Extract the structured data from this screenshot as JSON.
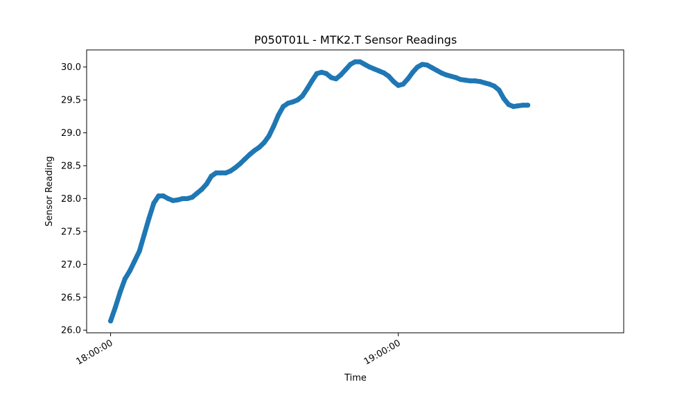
{
  "chart_data": {
    "type": "line",
    "title": "P050T01L - MTK2.T Sensor Readings",
    "xlabel": "Time",
    "ylabel": "Sensor Reading",
    "x_ticks": [
      "18:00:00",
      "19:00:00"
    ],
    "x_range_minutes": [
      -5,
      107
    ],
    "y_ticks": [
      "26.0",
      "26.5",
      "27.0",
      "27.5",
      "28.0",
      "28.5",
      "29.0",
      "29.5",
      "30.0"
    ],
    "ylim": [
      25.96,
      30.26
    ],
    "grid": false,
    "legend": "none",
    "color": "#1f77b4",
    "series": [
      {
        "name": "",
        "points": [
          [
            0,
            26.14
          ],
          [
            1,
            26.35
          ],
          [
            2,
            26.58
          ],
          [
            3,
            26.78
          ],
          [
            4,
            26.9
          ],
          [
            5,
            27.05
          ],
          [
            6,
            27.2
          ],
          [
            7,
            27.45
          ],
          [
            8,
            27.7
          ],
          [
            9,
            27.93
          ],
          [
            10,
            28.04
          ],
          [
            11,
            28.04
          ],
          [
            12,
            28.0
          ],
          [
            13,
            27.97
          ],
          [
            14,
            27.98
          ],
          [
            15,
            28.0
          ],
          [
            16,
            28.0
          ],
          [
            17,
            28.02
          ],
          [
            18,
            28.08
          ],
          [
            19,
            28.14
          ],
          [
            20,
            28.22
          ],
          [
            21,
            28.34
          ],
          [
            22,
            28.39
          ],
          [
            23,
            28.39
          ],
          [
            24,
            28.39
          ],
          [
            25,
            28.42
          ],
          [
            26,
            28.47
          ],
          [
            27,
            28.53
          ],
          [
            28,
            28.6
          ],
          [
            29,
            28.67
          ],
          [
            30,
            28.73
          ],
          [
            31,
            28.78
          ],
          [
            32,
            28.85
          ],
          [
            33,
            28.95
          ],
          [
            34,
            29.1
          ],
          [
            35,
            29.27
          ],
          [
            36,
            29.4
          ],
          [
            37,
            29.45
          ],
          [
            38,
            29.47
          ],
          [
            39,
            29.5
          ],
          [
            40,
            29.56
          ],
          [
            41,
            29.67
          ],
          [
            42,
            29.79
          ],
          [
            43,
            29.9
          ],
          [
            44,
            29.92
          ],
          [
            45,
            29.9
          ],
          [
            46,
            29.84
          ],
          [
            47,
            29.82
          ],
          [
            48,
            29.88
          ],
          [
            49,
            29.96
          ],
          [
            50,
            30.04
          ],
          [
            51,
            30.08
          ],
          [
            52,
            30.08
          ],
          [
            53,
            30.04
          ],
          [
            54,
            30.0
          ],
          [
            55,
            29.97
          ],
          [
            56,
            29.94
          ],
          [
            57,
            29.91
          ],
          [
            58,
            29.86
          ],
          [
            59,
            29.78
          ],
          [
            60,
            29.72
          ],
          [
            61,
            29.74
          ],
          [
            62,
            29.82
          ],
          [
            63,
            29.92
          ],
          [
            64,
            30.0
          ],
          [
            65,
            30.04
          ],
          [
            66,
            30.03
          ],
          [
            67,
            29.99
          ],
          [
            68,
            29.95
          ],
          [
            69,
            29.91
          ],
          [
            70,
            29.88
          ],
          [
            71,
            29.86
          ],
          [
            72,
            29.84
          ],
          [
            73,
            29.81
          ],
          [
            74,
            29.8
          ],
          [
            75,
            29.79
          ],
          [
            76,
            29.79
          ],
          [
            77,
            29.78
          ],
          [
            78,
            29.76
          ],
          [
            79,
            29.74
          ],
          [
            80,
            29.71
          ],
          [
            81,
            29.65
          ],
          [
            82,
            29.52
          ],
          [
            83,
            29.43
          ],
          [
            84,
            29.4
          ],
          [
            85,
            29.41
          ],
          [
            86,
            29.42
          ],
          [
            87,
            29.42
          ]
        ]
      }
    ]
  }
}
